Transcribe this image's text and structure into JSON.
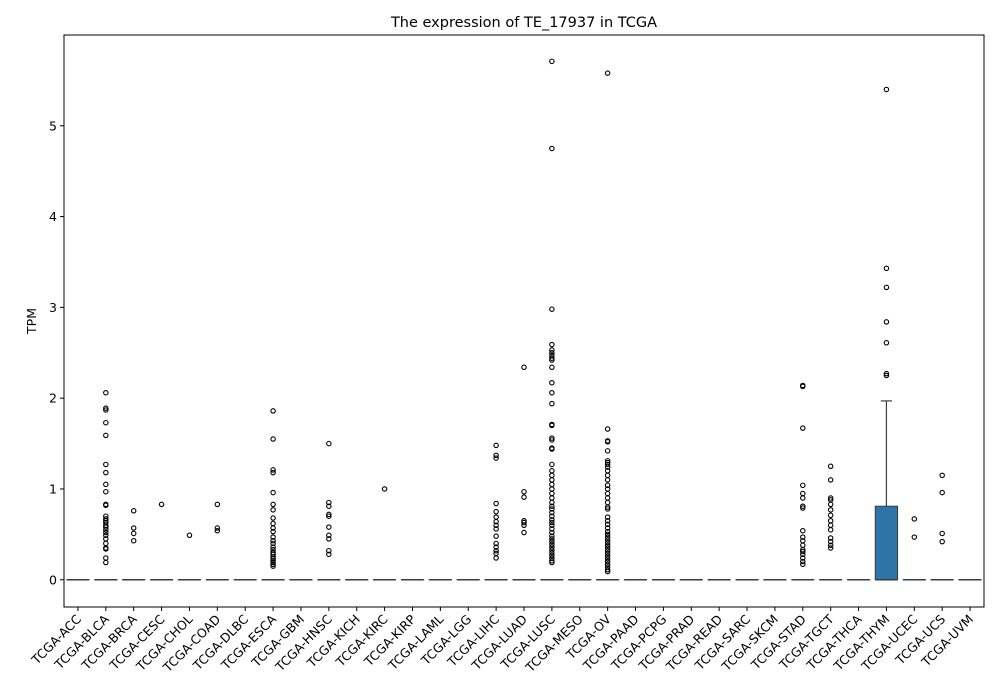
{
  "chart_data": {
    "type": "box",
    "title": "The expression of TE_17937 in TCGA",
    "xlabel": "",
    "ylabel": "TPM",
    "ylim": [
      -0.3,
      6.0
    ],
    "yticks": [
      0,
      1,
      2,
      3,
      4,
      5
    ],
    "grid": false,
    "legend": "none",
    "colors": {
      "box_fill": "#2f74a8",
      "line": "#3b3b3b",
      "flier_edge": "#000000"
    },
    "categories": [
      "TCGA-ACC",
      "TCGA-BLCA",
      "TCGA-BRCA",
      "TCGA-CESC",
      "TCGA-CHOL",
      "TCGA-COAD",
      "TCGA-DLBC",
      "TCGA-ESCA",
      "TCGA-GBM",
      "TCGA-HNSC",
      "TCGA-KICH",
      "TCGA-KIRC",
      "TCGA-KIRP",
      "TCGA-LAML",
      "TCGA-LGG",
      "TCGA-LIHC",
      "TCGA-LUAD",
      "TCGA-LUSC",
      "TCGA-MESO",
      "TCGA-OV",
      "TCGA-PAAD",
      "TCGA-PCPG",
      "TCGA-PRAD",
      "TCGA-READ",
      "TCGA-SARC",
      "TCGA-SKCM",
      "TCGA-STAD",
      "TCGA-TGCT",
      "TCGA-THCA",
      "TCGA-THYM",
      "TCGA-UCEC",
      "TCGA-UCS",
      "TCGA-UVM"
    ],
    "boxes": [
      {
        "q1": 0,
        "median": 0,
        "q3": 0,
        "whislo": 0,
        "whishi": 0
      },
      {
        "q1": 0,
        "median": 0,
        "q3": 0,
        "whislo": 0,
        "whishi": 0
      },
      {
        "q1": 0,
        "median": 0,
        "q3": 0,
        "whislo": 0,
        "whishi": 0
      },
      {
        "q1": 0,
        "median": 0,
        "q3": 0,
        "whislo": 0,
        "whishi": 0
      },
      {
        "q1": 0,
        "median": 0,
        "q3": 0,
        "whislo": 0,
        "whishi": 0
      },
      {
        "q1": 0,
        "median": 0,
        "q3": 0,
        "whislo": 0,
        "whishi": 0
      },
      {
        "q1": 0,
        "median": 0,
        "q3": 0,
        "whislo": 0,
        "whishi": 0
      },
      {
        "q1": 0,
        "median": 0,
        "q3": 0,
        "whislo": 0,
        "whishi": 0
      },
      {
        "q1": 0,
        "median": 0,
        "q3": 0,
        "whislo": 0,
        "whishi": 0
      },
      {
        "q1": 0,
        "median": 0,
        "q3": 0,
        "whislo": 0,
        "whishi": 0
      },
      {
        "q1": 0,
        "median": 0,
        "q3": 0,
        "whislo": 0,
        "whishi": 0
      },
      {
        "q1": 0,
        "median": 0,
        "q3": 0,
        "whislo": 0,
        "whishi": 0
      },
      {
        "q1": 0,
        "median": 0,
        "q3": 0,
        "whislo": 0,
        "whishi": 0
      },
      {
        "q1": 0,
        "median": 0,
        "q3": 0,
        "whislo": 0,
        "whishi": 0
      },
      {
        "q1": 0,
        "median": 0,
        "q3": 0,
        "whislo": 0,
        "whishi": 0
      },
      {
        "q1": 0,
        "median": 0,
        "q3": 0,
        "whislo": 0,
        "whishi": 0
      },
      {
        "q1": 0,
        "median": 0,
        "q3": 0,
        "whislo": 0,
        "whishi": 0
      },
      {
        "q1": 0,
        "median": 0,
        "q3": 0,
        "whislo": 0,
        "whishi": 0
      },
      {
        "q1": 0,
        "median": 0,
        "q3": 0,
        "whislo": 0,
        "whishi": 0
      },
      {
        "q1": 0,
        "median": 0,
        "q3": 0,
        "whislo": 0,
        "whishi": 0
      },
      {
        "q1": 0,
        "median": 0,
        "q3": 0,
        "whislo": 0,
        "whishi": 0
      },
      {
        "q1": 0,
        "median": 0,
        "q3": 0,
        "whislo": 0,
        "whishi": 0
      },
      {
        "q1": 0,
        "median": 0,
        "q3": 0,
        "whislo": 0,
        "whishi": 0
      },
      {
        "q1": 0,
        "median": 0,
        "q3": 0,
        "whislo": 0,
        "whishi": 0
      },
      {
        "q1": 0,
        "median": 0,
        "q3": 0,
        "whislo": 0,
        "whishi": 0
      },
      {
        "q1": 0,
        "median": 0,
        "q3": 0,
        "whislo": 0,
        "whishi": 0
      },
      {
        "q1": 0,
        "median": 0,
        "q3": 0,
        "whislo": 0,
        "whishi": 0
      },
      {
        "q1": 0,
        "median": 0,
        "q3": 0,
        "whislo": 0,
        "whishi": 0
      },
      {
        "q1": 0,
        "median": 0,
        "q3": 0,
        "whislo": 0,
        "whishi": 0
      },
      {
        "q1": 0,
        "median": 0,
        "q3": 0.81,
        "whislo": 0,
        "whishi": 1.97
      },
      {
        "q1": 0,
        "median": 0,
        "q3": 0,
        "whislo": 0,
        "whishi": 0
      },
      {
        "q1": 0,
        "median": 0,
        "q3": 0,
        "whislo": 0,
        "whishi": 0
      },
      {
        "q1": 0,
        "median": 0,
        "q3": 0,
        "whislo": 0,
        "whishi": 0
      }
    ],
    "fliers": [
      [],
      [
        2.06,
        1.89,
        1.87,
        1.73,
        1.59,
        1.27,
        1.18,
        1.05,
        0.97,
        0.83,
        0.82,
        0.7,
        0.67,
        0.65,
        0.63,
        0.6,
        0.58,
        0.55,
        0.52,
        0.49,
        0.45,
        0.4,
        0.35,
        0.34,
        0.24,
        0.19
      ],
      [
        0.76,
        0.57,
        0.51,
        0.43
      ],
      [
        0.83
      ],
      [
        0.49
      ],
      [
        0.83,
        0.57,
        0.54
      ],
      [],
      [
        1.86,
        1.55,
        1.21,
        1.18,
        0.96,
        0.83,
        0.77,
        0.68,
        0.62,
        0.57,
        0.53,
        0.47,
        0.43,
        0.4,
        0.36,
        0.33,
        0.3,
        0.28,
        0.25,
        0.23,
        0.21,
        0.19,
        0.17,
        0.15
      ],
      [],
      [
        1.5,
        0.85,
        0.81,
        0.72,
        0.7,
        0.58,
        0.49,
        0.45,
        0.32,
        0.28
      ],
      [],
      [
        1.0
      ],
      [],
      [],
      [],
      [
        1.48,
        1.37,
        1.34,
        0.84,
        0.75,
        0.69,
        0.64,
        0.6,
        0.56,
        0.48,
        0.4,
        0.36,
        0.32,
        0.29,
        0.24
      ],
      [
        2.34,
        0.97,
        0.91,
        0.65,
        0.63,
        0.6,
        0.52
      ],
      [
        5.71,
        4.75,
        2.98,
        2.59,
        2.53,
        2.5,
        2.47,
        2.44,
        2.42,
        2.34,
        2.17,
        2.06,
        1.94,
        1.71,
        1.7,
        1.56,
        1.54,
        1.45,
        1.44,
        1.27,
        1.2,
        1.15,
        1.1,
        1.05,
        1.0,
        0.95,
        0.9,
        0.85,
        0.81,
        0.78,
        0.74,
        0.7,
        0.66,
        0.63,
        0.6,
        0.56,
        0.52,
        0.48,
        0.45,
        0.42,
        0.39,
        0.36,
        0.33,
        0.3,
        0.27,
        0.24,
        0.21,
        0.19
      ],
      [],
      [
        5.58,
        1.66,
        1.53,
        1.52,
        1.42,
        1.31,
        1.29,
        1.27,
        1.24,
        1.2,
        1.15,
        1.1,
        1.04,
        1.0,
        0.95,
        0.9,
        0.85,
        0.8,
        0.78,
        0.69,
        0.65,
        0.61,
        0.57,
        0.53,
        0.5,
        0.47,
        0.44,
        0.41,
        0.38,
        0.35,
        0.32,
        0.29,
        0.26,
        0.23,
        0.2,
        0.17,
        0.14,
        0.11,
        0.09
      ],
      [],
      [],
      [],
      [],
      [],
      [],
      [
        2.14,
        2.13,
        1.67,
        1.04,
        0.95,
        0.9,
        0.81,
        0.79,
        0.54,
        0.47,
        0.43,
        0.38,
        0.33,
        0.31,
        0.28,
        0.24,
        0.2,
        0.17
      ],
      [
        1.25,
        1.1,
        0.9,
        0.88,
        0.83,
        0.77,
        0.71,
        0.65,
        0.6,
        0.55,
        0.46,
        0.42,
        0.38,
        0.35
      ],
      [],
      [
        5.4,
        3.43,
        3.22,
        2.84,
        2.61,
        2.27,
        2.25
      ],
      [
        0.67,
        0.47
      ],
      [
        1.15,
        0.96,
        0.51,
        0.42
      ],
      []
    ]
  }
}
